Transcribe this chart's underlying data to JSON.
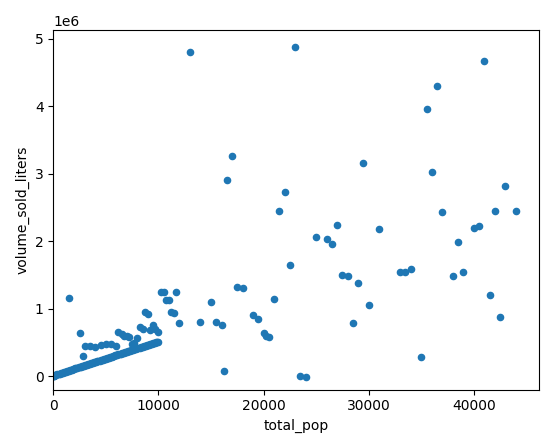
{
  "xlabel": "total_pop",
  "ylabel": "volume_sold_liters",
  "xlim": [
    0,
    45000
  ],
  "ylim": [
    -100000,
    5100000
  ],
  "marker_color": "#1f77b4",
  "marker_size": 20,
  "points": [
    [
      0,
      0
    ],
    [
      50,
      5000
    ],
    [
      100,
      8000
    ],
    [
      150,
      12000
    ],
    [
      200,
      15000
    ],
    [
      300,
      20000
    ],
    [
      400,
      25000
    ],
    [
      500,
      30000
    ],
    [
      600,
      35000
    ],
    [
      700,
      40000
    ],
    [
      800,
      45000
    ],
    [
      900,
      50000
    ],
    [
      1000,
      55000
    ],
    [
      1100,
      60000
    ],
    [
      1200,
      65000
    ],
    [
      1300,
      70000
    ],
    [
      1400,
      75000
    ],
    [
      1500,
      80000
    ],
    [
      1600,
      85000
    ],
    [
      1700,
      90000
    ],
    [
      1800,
      95000
    ],
    [
      1900,
      100000
    ],
    [
      2000,
      110000
    ],
    [
      2100,
      115000
    ],
    [
      2200,
      120000
    ],
    [
      2300,
      125000
    ],
    [
      2400,
      130000
    ],
    [
      2500,
      135000
    ],
    [
      2600,
      140000
    ],
    [
      2700,
      145000
    ],
    [
      2800,
      150000
    ],
    [
      2900,
      155000
    ],
    [
      3000,
      160000
    ],
    [
      3100,
      165000
    ],
    [
      3200,
      170000
    ],
    [
      3300,
      175000
    ],
    [
      3400,
      180000
    ],
    [
      3500,
      185000
    ],
    [
      3600,
      190000
    ],
    [
      3700,
      195000
    ],
    [
      3800,
      200000
    ],
    [
      3900,
      205000
    ],
    [
      4000,
      210000
    ],
    [
      4100,
      215000
    ],
    [
      4200,
      220000
    ],
    [
      4300,
      225000
    ],
    [
      4400,
      230000
    ],
    [
      4500,
      235000
    ],
    [
      4600,
      240000
    ],
    [
      4700,
      245000
    ],
    [
      4800,
      250000
    ],
    [
      4900,
      255000
    ],
    [
      5000,
      260000
    ],
    [
      5100,
      265000
    ],
    [
      5200,
      270000
    ],
    [
      5300,
      275000
    ],
    [
      5400,
      280000
    ],
    [
      5500,
      285000
    ],
    [
      5600,
      290000
    ],
    [
      5700,
      295000
    ],
    [
      5800,
      300000
    ],
    [
      5900,
      305000
    ],
    [
      6000,
      310000
    ],
    [
      6100,
      315000
    ],
    [
      6200,
      320000
    ],
    [
      6300,
      325000
    ],
    [
      6400,
      330000
    ],
    [
      6500,
      335000
    ],
    [
      6600,
      340000
    ],
    [
      6700,
      345000
    ],
    [
      6800,
      350000
    ],
    [
      6900,
      355000
    ],
    [
      7000,
      360000
    ],
    [
      7100,
      365000
    ],
    [
      7200,
      370000
    ],
    [
      7300,
      375000
    ],
    [
      7400,
      380000
    ],
    [
      7500,
      385000
    ],
    [
      7600,
      390000
    ],
    [
      7700,
      395000
    ],
    [
      7800,
      400000
    ],
    [
      7900,
      405000
    ],
    [
      8000,
      410000
    ],
    [
      8100,
      415000
    ],
    [
      8200,
      420000
    ],
    [
      8300,
      425000
    ],
    [
      8400,
      430000
    ],
    [
      8500,
      435000
    ],
    [
      8600,
      440000
    ],
    [
      8700,
      445000
    ],
    [
      8800,
      450000
    ],
    [
      8900,
      455000
    ],
    [
      9000,
      460000
    ],
    [
      9100,
      465000
    ],
    [
      9200,
      470000
    ],
    [
      9300,
      475000
    ],
    [
      9400,
      480000
    ],
    [
      9500,
      485000
    ],
    [
      9600,
      490000
    ],
    [
      9700,
      495000
    ],
    [
      9800,
      500000
    ],
    [
      9900,
      505000
    ],
    [
      10000,
      510000
    ],
    [
      1500,
      1150000
    ],
    [
      2500,
      640000
    ],
    [
      2800,
      300000
    ],
    [
      3000,
      450000
    ],
    [
      3500,
      440000
    ],
    [
      4000,
      430000
    ],
    [
      4500,
      460000
    ],
    [
      5000,
      470000
    ],
    [
      5500,
      480000
    ],
    [
      6000,
      440000
    ],
    [
      6200,
      650000
    ],
    [
      6500,
      630000
    ],
    [
      6700,
      600000
    ],
    [
      7000,
      590000
    ],
    [
      7200,
      580000
    ],
    [
      7500,
      480000
    ],
    [
      7700,
      490000
    ],
    [
      8000,
      560000
    ],
    [
      8200,
      730000
    ],
    [
      8500,
      700000
    ],
    [
      8700,
      950000
    ],
    [
      9000,
      920000
    ],
    [
      9200,
      680000
    ],
    [
      9500,
      750000
    ],
    [
      9700,
      700000
    ],
    [
      10000,
      650000
    ],
    [
      10200,
      1240000
    ],
    [
      10500,
      1250000
    ],
    [
      10700,
      1130000
    ],
    [
      11000,
      1130000
    ],
    [
      11200,
      950000
    ],
    [
      11500,
      940000
    ],
    [
      11700,
      1240000
    ],
    [
      12000,
      780000
    ],
    [
      13000,
      4800000
    ],
    [
      14000,
      800000
    ],
    [
      15000,
      1100000
    ],
    [
      15500,
      800000
    ],
    [
      16000,
      750000
    ],
    [
      16200,
      70000
    ],
    [
      16500,
      2900000
    ],
    [
      17000,
      3260000
    ],
    [
      17500,
      1320000
    ],
    [
      18000,
      1300000
    ],
    [
      19000,
      900000
    ],
    [
      19500,
      850000
    ],
    [
      20000,
      640000
    ],
    [
      20200,
      600000
    ],
    [
      20500,
      580000
    ],
    [
      21000,
      1140000
    ],
    [
      21500,
      2450000
    ],
    [
      22000,
      2720000
    ],
    [
      22500,
      1640000
    ],
    [
      23000,
      4880000
    ],
    [
      23500,
      0
    ],
    [
      24000,
      -20000
    ],
    [
      25000,
      2060000
    ],
    [
      26000,
      2030000
    ],
    [
      26500,
      1960000
    ],
    [
      27000,
      2240000
    ],
    [
      27500,
      1500000
    ],
    [
      28000,
      1480000
    ],
    [
      28500,
      790000
    ],
    [
      29000,
      1380000
    ],
    [
      29500,
      3150000
    ],
    [
      30000,
      1060000
    ],
    [
      31000,
      2175000
    ],
    [
      33000,
      1540000
    ],
    [
      33500,
      1540000
    ],
    [
      34000,
      1590000
    ],
    [
      35000,
      290000
    ],
    [
      35500,
      3950000
    ],
    [
      36000,
      3030000
    ],
    [
      36500,
      4300000
    ],
    [
      37000,
      2430000
    ],
    [
      38000,
      1490000
    ],
    [
      38500,
      1980000
    ],
    [
      39000,
      1540000
    ],
    [
      40000,
      2190000
    ],
    [
      40500,
      2220000
    ],
    [
      41000,
      4670000
    ],
    [
      41500,
      1200000
    ],
    [
      42000,
      2450000
    ],
    [
      42500,
      880000
    ],
    [
      43000,
      2820000
    ],
    [
      44000,
      2450000
    ]
  ]
}
